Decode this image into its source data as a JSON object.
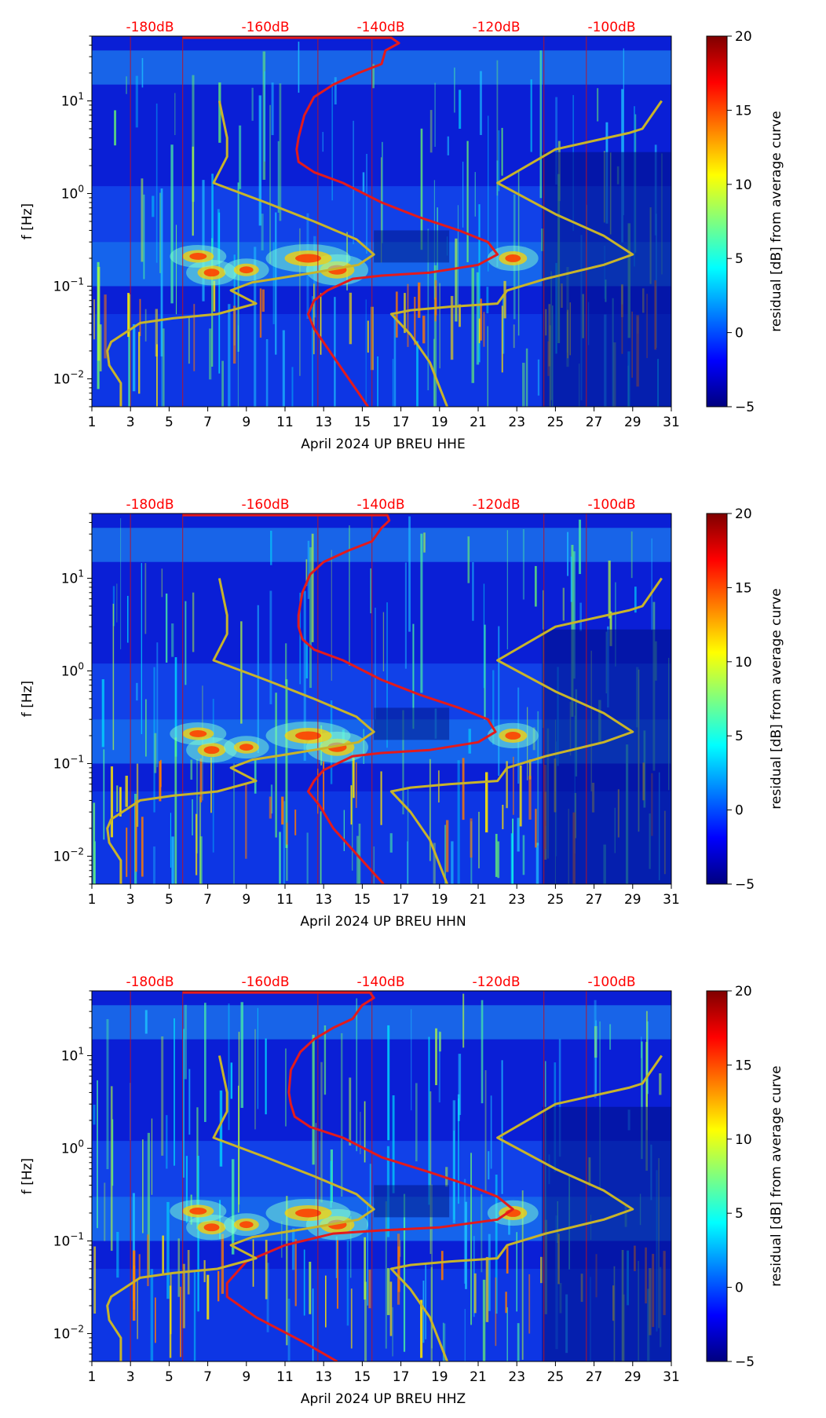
{
  "figure": {
    "colors": {
      "background": "#ffffff",
      "axis": "#000000",
      "curve_red": "#e31a1c",
      "curve_yellow": "#c8b42a",
      "db_label": "#ff0000"
    },
    "colormap": {
      "name": "jet",
      "stops": [
        "#00007f",
        "#0000ff",
        "#007fff",
        "#00ffff",
        "#7fff7f",
        "#ffff00",
        "#ff7f00",
        "#ff0000",
        "#7f0000"
      ]
    }
  },
  "chart_data": [
    {
      "type": "heatmap",
      "title": "",
      "xlabel": "April 2024 UP BREU  HHE",
      "ylabel": "f [Hz]",
      "xlim": [
        1,
        31
      ],
      "ylim": [
        0.005,
        50
      ],
      "yscale": "log",
      "x_ticks": [
        "1",
        "3",
        "5",
        "7",
        "9",
        "11",
        "13",
        "15",
        "17",
        "19",
        "21",
        "23",
        "25",
        "27",
        "29",
        "31"
      ],
      "y_ticks": [
        {
          "value": 0.01,
          "base": "10",
          "exp": "−2"
        },
        {
          "value": 0.1,
          "base": "10",
          "exp": "−1"
        },
        {
          "value": 1,
          "base": "10",
          "exp": "0"
        },
        {
          "value": 10,
          "base": "10",
          "exp": "1"
        }
      ],
      "top_db_labels": [
        "-180dB",
        "-160dB",
        "-140dB",
        "-120dB",
        "-100dB"
      ],
      "colorbar": {
        "label": "residual [dB] from average curve",
        "min": -5,
        "max": 20,
        "ticks": [
          "−5",
          "0",
          "5",
          "10",
          "15",
          "20"
        ]
      },
      "series": [
        {
          "name": "PSD red",
          "color": "#e31a1c",
          "points": [
            [
              5.7,
              48
            ],
            [
              16.5,
              48
            ],
            [
              16.9,
              42
            ],
            [
              16.2,
              35
            ],
            [
              16.0,
              25
            ],
            [
              14.8,
              20
            ],
            [
              13.5,
              15
            ],
            [
              12.5,
              11
            ],
            [
              12.0,
              7
            ],
            [
              11.7,
              4
            ],
            [
              11.6,
              3
            ],
            [
              11.7,
              2.2
            ],
            [
              12.5,
              1.7
            ],
            [
              14.0,
              1.3
            ],
            [
              16.0,
              0.8
            ],
            [
              18.0,
              0.55
            ],
            [
              20.0,
              0.4
            ],
            [
              21.5,
              0.3
            ],
            [
              22.0,
              0.22
            ],
            [
              21.0,
              0.17
            ],
            [
              18.5,
              0.14
            ],
            [
              16.0,
              0.13
            ],
            [
              14.5,
              0.12
            ],
            [
              13.2,
              0.09
            ],
            [
              12.5,
              0.07
            ],
            [
              12.2,
              0.05
            ],
            [
              12.5,
              0.035
            ],
            [
              13.3,
              0.02
            ],
            [
              14.3,
              0.01
            ],
            [
              15.3,
              0.005
            ]
          ]
        },
        {
          "name": "NLNM yellow",
          "color": "#c8b42a",
          "points": [
            [
              7.6,
              10
            ],
            [
              8.0,
              4
            ],
            [
              8.0,
              2.5
            ],
            [
              7.3,
              1.3
            ],
            [
              10.0,
              0.8
            ],
            [
              12.5,
              0.5
            ],
            [
              14.7,
              0.32
            ],
            [
              15.6,
              0.22
            ],
            [
              14.8,
              0.17
            ],
            [
              12.5,
              0.14
            ],
            [
              10.5,
              0.12
            ],
            [
              9.3,
              0.11
            ],
            [
              8.2,
              0.09
            ],
            [
              9.5,
              0.065
            ],
            [
              7.5,
              0.05
            ],
            [
              5.2,
              0.045
            ],
            [
              3.5,
              0.04
            ],
            [
              2.0,
              0.025
            ],
            [
              1.8,
              0.02
            ],
            [
              1.9,
              0.014
            ],
            [
              2.5,
              0.009
            ],
            [
              2.5,
              0.005
            ]
          ]
        },
        {
          "name": "NHNM yellow",
          "color": "#c8b42a",
          "points": [
            [
              30.5,
              10
            ],
            [
              29.5,
              5
            ],
            [
              28.8,
              4.5
            ],
            [
              25.0,
              3.0
            ],
            [
              22.0,
              1.3
            ],
            [
              25.0,
              0.6
            ],
            [
              27.5,
              0.35
            ],
            [
              29.0,
              0.22
            ],
            [
              27.5,
              0.17
            ],
            [
              24.5,
              0.12
            ],
            [
              22.5,
              0.09
            ],
            [
              22.0,
              0.065
            ],
            [
              19.5,
              0.06
            ],
            [
              17.5,
              0.055
            ],
            [
              16.5,
              0.05
            ],
            [
              17.5,
              0.03
            ],
            [
              18.5,
              0.015
            ],
            [
              19.4,
              0.005
            ]
          ]
        }
      ]
    },
    {
      "type": "heatmap",
      "title": "",
      "xlabel": "April 2024 UP BREU  HHN",
      "ylabel": "f [Hz]",
      "xlim": [
        1,
        31
      ],
      "ylim": [
        0.005,
        50
      ],
      "yscale": "log",
      "x_ticks": [
        "1",
        "3",
        "5",
        "7",
        "9",
        "11",
        "13",
        "15",
        "17",
        "19",
        "21",
        "23",
        "25",
        "27",
        "29",
        "31"
      ],
      "y_ticks": [
        {
          "value": 0.01,
          "base": "10",
          "exp": "−2"
        },
        {
          "value": 0.1,
          "base": "10",
          "exp": "−1"
        },
        {
          "value": 1,
          "base": "10",
          "exp": "0"
        },
        {
          "value": 10,
          "base": "10",
          "exp": "1"
        }
      ],
      "top_db_labels": [
        "-180dB",
        "-160dB",
        "-140dB",
        "-120dB",
        "-100dB"
      ],
      "colorbar": {
        "label": "residual [dB] from average curve",
        "min": -5,
        "max": 20,
        "ticks": [
          "−5",
          "0",
          "5",
          "10",
          "15",
          "20"
        ]
      },
      "series": [
        {
          "name": "PSD red",
          "color": "#e31a1c",
          "points": [
            [
              5.7,
              48
            ],
            [
              16.3,
              48
            ],
            [
              16.4,
              42
            ],
            [
              16.0,
              35
            ],
            [
              15.5,
              25
            ],
            [
              14.3,
              20
            ],
            [
              13.0,
              15
            ],
            [
              12.3,
              11
            ],
            [
              11.9,
              7
            ],
            [
              11.7,
              4
            ],
            [
              11.7,
              3
            ],
            [
              11.9,
              2.2
            ],
            [
              12.5,
              1.7
            ],
            [
              14.0,
              1.3
            ],
            [
              16.0,
              0.8
            ],
            [
              18.0,
              0.55
            ],
            [
              20.0,
              0.4
            ],
            [
              21.5,
              0.3
            ],
            [
              21.9,
              0.22
            ],
            [
              21.0,
              0.17
            ],
            [
              18.5,
              0.14
            ],
            [
              16.0,
              0.13
            ],
            [
              14.5,
              0.12
            ],
            [
              13.0,
              0.085
            ],
            [
              12.5,
              0.065
            ],
            [
              12.2,
              0.05
            ],
            [
              12.8,
              0.035
            ],
            [
              13.5,
              0.02
            ],
            [
              14.8,
              0.01
            ],
            [
              16.1,
              0.005
            ]
          ]
        },
        {
          "name": "NLNM yellow",
          "color": "#c8b42a",
          "points": [
            [
              7.6,
              10
            ],
            [
              8.0,
              4
            ],
            [
              8.0,
              2.5
            ],
            [
              7.3,
              1.3
            ],
            [
              10.0,
              0.8
            ],
            [
              12.5,
              0.5
            ],
            [
              14.7,
              0.32
            ],
            [
              15.6,
              0.22
            ],
            [
              14.8,
              0.17
            ],
            [
              12.5,
              0.14
            ],
            [
              10.5,
              0.12
            ],
            [
              9.3,
              0.11
            ],
            [
              8.2,
              0.09
            ],
            [
              9.5,
              0.065
            ],
            [
              7.5,
              0.05
            ],
            [
              5.2,
              0.045
            ],
            [
              3.5,
              0.04
            ],
            [
              2.0,
              0.025
            ],
            [
              1.8,
              0.02
            ],
            [
              1.9,
              0.014
            ],
            [
              2.5,
              0.009
            ],
            [
              2.5,
              0.005
            ]
          ]
        },
        {
          "name": "NHNM yellow",
          "color": "#c8b42a",
          "points": [
            [
              30.5,
              10
            ],
            [
              29.5,
              5
            ],
            [
              28.8,
              4.5
            ],
            [
              25.0,
              3.0
            ],
            [
              22.0,
              1.3
            ],
            [
              25.0,
              0.6
            ],
            [
              27.5,
              0.35
            ],
            [
              29.0,
              0.22
            ],
            [
              27.5,
              0.17
            ],
            [
              24.5,
              0.12
            ],
            [
              22.5,
              0.09
            ],
            [
              22.0,
              0.065
            ],
            [
              19.5,
              0.06
            ],
            [
              17.5,
              0.055
            ],
            [
              16.5,
              0.05
            ],
            [
              17.5,
              0.03
            ],
            [
              18.5,
              0.015
            ],
            [
              19.4,
              0.005
            ]
          ]
        }
      ]
    },
    {
      "type": "heatmap",
      "title": "",
      "xlabel": "April 2024 UP BREU  HHZ",
      "ylabel": "f [Hz]",
      "xlim": [
        1,
        31
      ],
      "ylim": [
        0.005,
        50
      ],
      "yscale": "log",
      "x_ticks": [
        "1",
        "3",
        "5",
        "7",
        "9",
        "11",
        "13",
        "15",
        "17",
        "19",
        "21",
        "23",
        "25",
        "27",
        "29",
        "31"
      ],
      "y_ticks": [
        {
          "value": 0.01,
          "base": "10",
          "exp": "−2"
        },
        {
          "value": 0.1,
          "base": "10",
          "exp": "−1"
        },
        {
          "value": 1,
          "base": "10",
          "exp": "0"
        },
        {
          "value": 10,
          "base": "10",
          "exp": "1"
        }
      ],
      "top_db_labels": [
        "-180dB",
        "-160dB",
        "-140dB",
        "-120dB",
        "-100dB"
      ],
      "colorbar": {
        "label": "residual [dB] from average curve",
        "min": -5,
        "max": 20,
        "ticks": [
          "−5",
          "0",
          "5",
          "10",
          "15",
          "20"
        ]
      },
      "series": [
        {
          "name": "PSD red",
          "color": "#e31a1c",
          "points": [
            [
              5.7,
              48
            ],
            [
              15.4,
              48
            ],
            [
              15.6,
              42
            ],
            [
              15.0,
              35
            ],
            [
              14.5,
              25
            ],
            [
              13.5,
              20
            ],
            [
              12.5,
              15
            ],
            [
              11.8,
              11
            ],
            [
              11.3,
              7
            ],
            [
              11.2,
              4
            ],
            [
              11.3,
              3
            ],
            [
              11.5,
              2.2
            ],
            [
              12.3,
              1.7
            ],
            [
              14.0,
              1.3
            ],
            [
              16.0,
              0.8
            ],
            [
              18.5,
              0.55
            ],
            [
              20.5,
              0.4
            ],
            [
              22.0,
              0.3
            ],
            [
              22.8,
              0.22
            ],
            [
              22.0,
              0.17
            ],
            [
              19.0,
              0.14
            ],
            [
              16.0,
              0.13
            ],
            [
              13.5,
              0.12
            ],
            [
              11.0,
              0.09
            ],
            [
              9.0,
              0.06
            ],
            [
              8.0,
              0.035
            ],
            [
              8.0,
              0.025
            ],
            [
              9.5,
              0.015
            ],
            [
              12.0,
              0.008
            ],
            [
              13.7,
              0.005
            ]
          ]
        },
        {
          "name": "NLNM yellow",
          "color": "#c8b42a",
          "points": [
            [
              7.6,
              10
            ],
            [
              8.0,
              4
            ],
            [
              8.0,
              2.5
            ],
            [
              7.3,
              1.3
            ],
            [
              10.0,
              0.8
            ],
            [
              12.5,
              0.5
            ],
            [
              14.7,
              0.32
            ],
            [
              15.6,
              0.22
            ],
            [
              14.8,
              0.17
            ],
            [
              12.5,
              0.14
            ],
            [
              10.5,
              0.12
            ],
            [
              9.3,
              0.11
            ],
            [
              8.2,
              0.09
            ],
            [
              9.5,
              0.065
            ],
            [
              7.5,
              0.05
            ],
            [
              5.2,
              0.045
            ],
            [
              3.5,
              0.04
            ],
            [
              2.0,
              0.025
            ],
            [
              1.8,
              0.02
            ],
            [
              1.9,
              0.014
            ],
            [
              2.5,
              0.009
            ],
            [
              2.5,
              0.005
            ]
          ]
        },
        {
          "name": "NHNM yellow",
          "color": "#c8b42a",
          "points": [
            [
              30.5,
              10
            ],
            [
              29.5,
              5
            ],
            [
              28.8,
              4.5
            ],
            [
              25.0,
              3.0
            ],
            [
              22.0,
              1.3
            ],
            [
              25.0,
              0.6
            ],
            [
              27.5,
              0.35
            ],
            [
              29.0,
              0.22
            ],
            [
              27.5,
              0.17
            ],
            [
              24.5,
              0.12
            ],
            [
              22.5,
              0.09
            ],
            [
              22.0,
              0.065
            ],
            [
              19.5,
              0.06
            ],
            [
              17.5,
              0.055
            ],
            [
              16.5,
              0.05
            ],
            [
              17.5,
              0.03
            ],
            [
              18.5,
              0.015
            ],
            [
              19.4,
              0.005
            ]
          ]
        }
      ]
    }
  ]
}
